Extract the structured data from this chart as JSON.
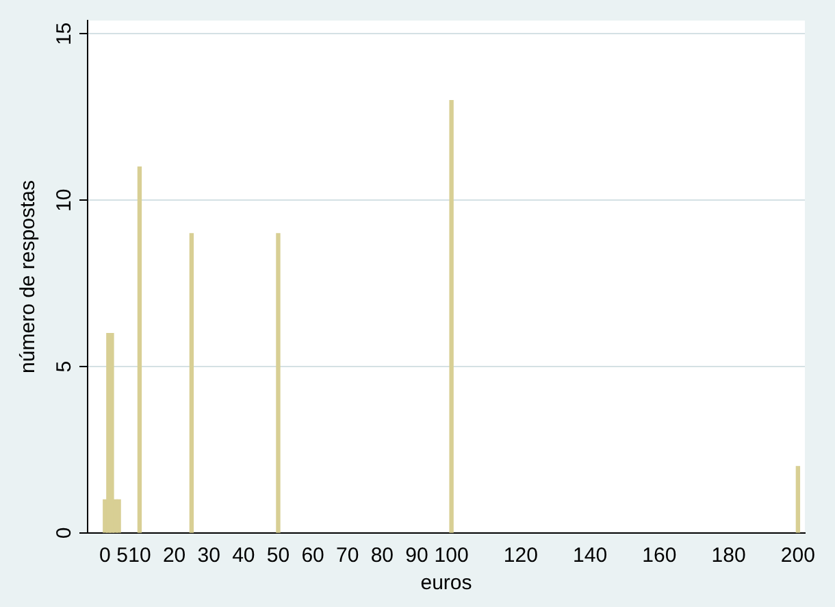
{
  "chart_data": {
    "type": "bar",
    "xlabel": "euros",
    "ylabel": "número de respostas",
    "x": [
      0,
      1,
      2,
      3,
      4,
      10,
      25,
      50,
      100,
      200
    ],
    "values": [
      1,
      6,
      6,
      1,
      1,
      11,
      9,
      9,
      13,
      2
    ],
    "color": "#d8cf94",
    "xlim": [
      -5,
      202
    ],
    "xticks": [
      0,
      5,
      10,
      20,
      30,
      40,
      50,
      60,
      70,
      80,
      90,
      100,
      120,
      140,
      160,
      180,
      200
    ],
    "ylim": [
      0,
      15.4
    ],
    "yticks": [
      0,
      5,
      10,
      15
    ],
    "grid": "y",
    "legend": false
  }
}
